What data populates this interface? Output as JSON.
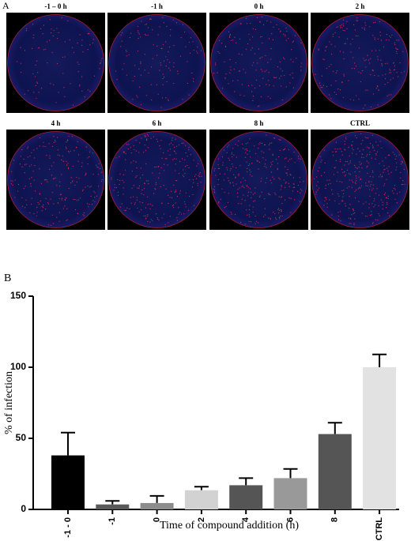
{
  "panel_a": {
    "label": "A",
    "images": [
      "-1 – 0 h",
      "-1 h",
      "0 h",
      "2 h",
      "4 h",
      "6 h",
      "8 h",
      "CTRL"
    ]
  },
  "chart_data": {
    "type": "bar",
    "panel_label": "B",
    "categories": [
      "-1 - 0",
      "-1",
      "0",
      "2",
      "4",
      "6",
      "8",
      "CTRL"
    ],
    "values": [
      38,
      3.5,
      4.5,
      13.5,
      17,
      22,
      53,
      100
    ],
    "errors": [
      16,
      2.5,
      5,
      2.5,
      5,
      6.5,
      8,
      9
    ],
    "colors": [
      "#000000",
      "#5a5a5a",
      "#8c8c8c",
      "#d2d2d2",
      "#555555",
      "#999999",
      "#555555",
      "#e2e2e2"
    ],
    "ylabel": "% of infection",
    "xlabel": "Time of compound addition (h)",
    "ylim": [
      0,
      150
    ],
    "yticks": [
      0,
      50,
      100,
      150
    ]
  }
}
